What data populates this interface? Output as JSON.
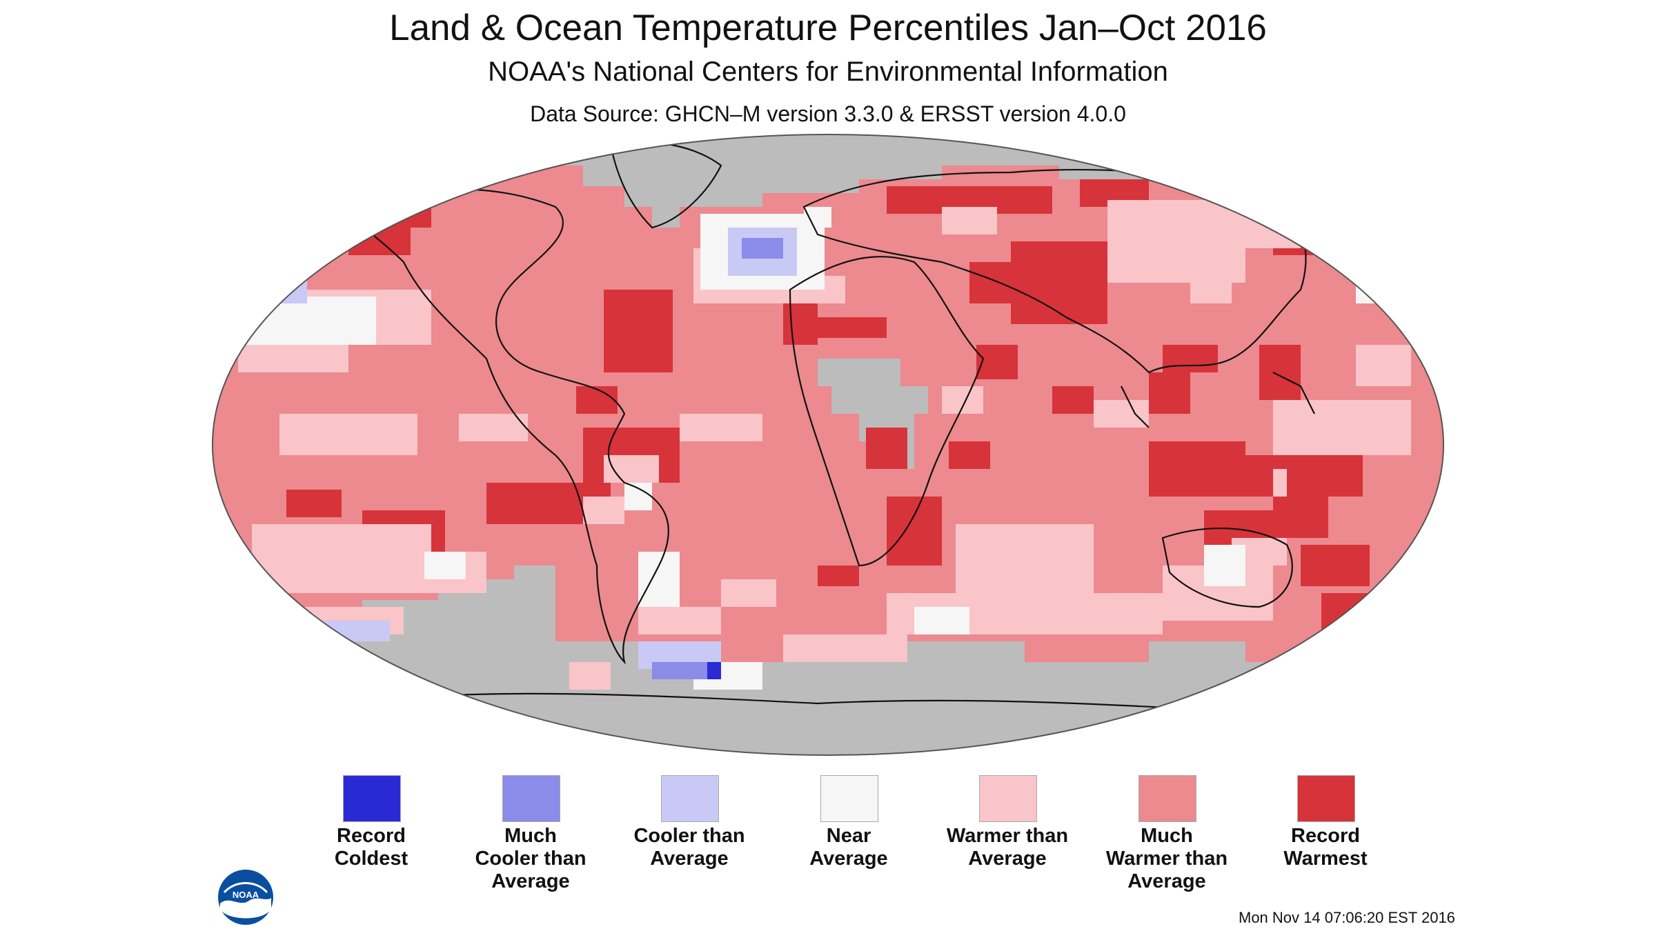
{
  "header": {
    "title": "Land & Ocean Temperature Percentiles Jan–Oct 2016",
    "subtitle": "NOAA's National Centers for Environmental Information",
    "source": "Data Source: GHCN–M version 3.3.0 & ERSST version 4.0.0"
  },
  "colors": {
    "record_coldest": "#2a2ad4",
    "much_cooler": "#8b8bea",
    "cooler": "#c9c9f6",
    "near": "#f6f6f6",
    "warmer": "#f9c5c8",
    "much_warmer": "#ec8a8f",
    "record_warmest": "#d7333a",
    "no_data": "#bcbcbc",
    "coast": "#111111"
  },
  "legend": [
    {
      "label": "Record\nColdest",
      "color": "#2a2ad4"
    },
    {
      "label": "Much\nCooler than\nAverage",
      "color": "#8b8bea"
    },
    {
      "label": "Cooler than\nAverage",
      "color": "#c9c9f6"
    },
    {
      "label": "Near\nAverage",
      "color": "#f6f6f6"
    },
    {
      "label": "Warmer than\nAverage",
      "color": "#f9c5c8"
    },
    {
      "label": "Much\nWarmer than\nAverage",
      "color": "#ec8a8f"
    },
    {
      "label": "Record\nWarmest",
      "color": "#d7333a"
    }
  ],
  "timestamp": "Mon Nov 14 07:06:20 EST 2016",
  "logo": {
    "icon": "noaa-logo-icon",
    "text": "NOAA"
  }
}
